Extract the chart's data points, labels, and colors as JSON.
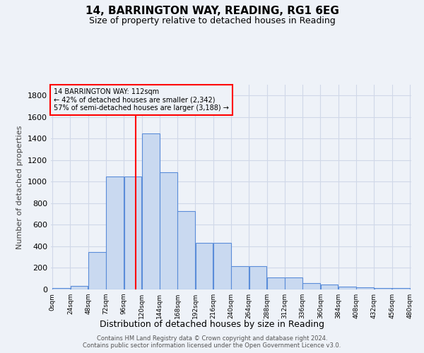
{
  "title": "14, BARRINGTON WAY, READING, RG1 6EG",
  "subtitle": "Size of property relative to detached houses in Reading",
  "xlabel": "Distribution of detached houses by size in Reading",
  "ylabel": "Number of detached properties",
  "heights": [
    10,
    30,
    350,
    1050,
    1050,
    1450,
    1090,
    730,
    430,
    430,
    215,
    215,
    110,
    110,
    60,
    45,
    25,
    20,
    15,
    10
  ],
  "bin_width": 24,
  "bar_facecolor": "#c9d9f0",
  "bar_edgecolor": "#5b8dd9",
  "grid_color": "#d0d8e8",
  "background_color": "#eef2f8",
  "property_size": 112,
  "vline_color": "red",
  "annotation_text": "14 BARRINGTON WAY: 112sqm\n← 42% of detached houses are smaller (2,342)\n57% of semi-detached houses are larger (3,188) →",
  "annotation_box_color": "red",
  "ylim": [
    0,
    1900
  ],
  "yticks": [
    0,
    200,
    400,
    600,
    800,
    1000,
    1200,
    1400,
    1600,
    1800
  ],
  "footer_line1": "Contains HM Land Registry data © Crown copyright and database right 2024.",
  "footer_line2": "Contains public sector information licensed under the Open Government Licence v3.0."
}
